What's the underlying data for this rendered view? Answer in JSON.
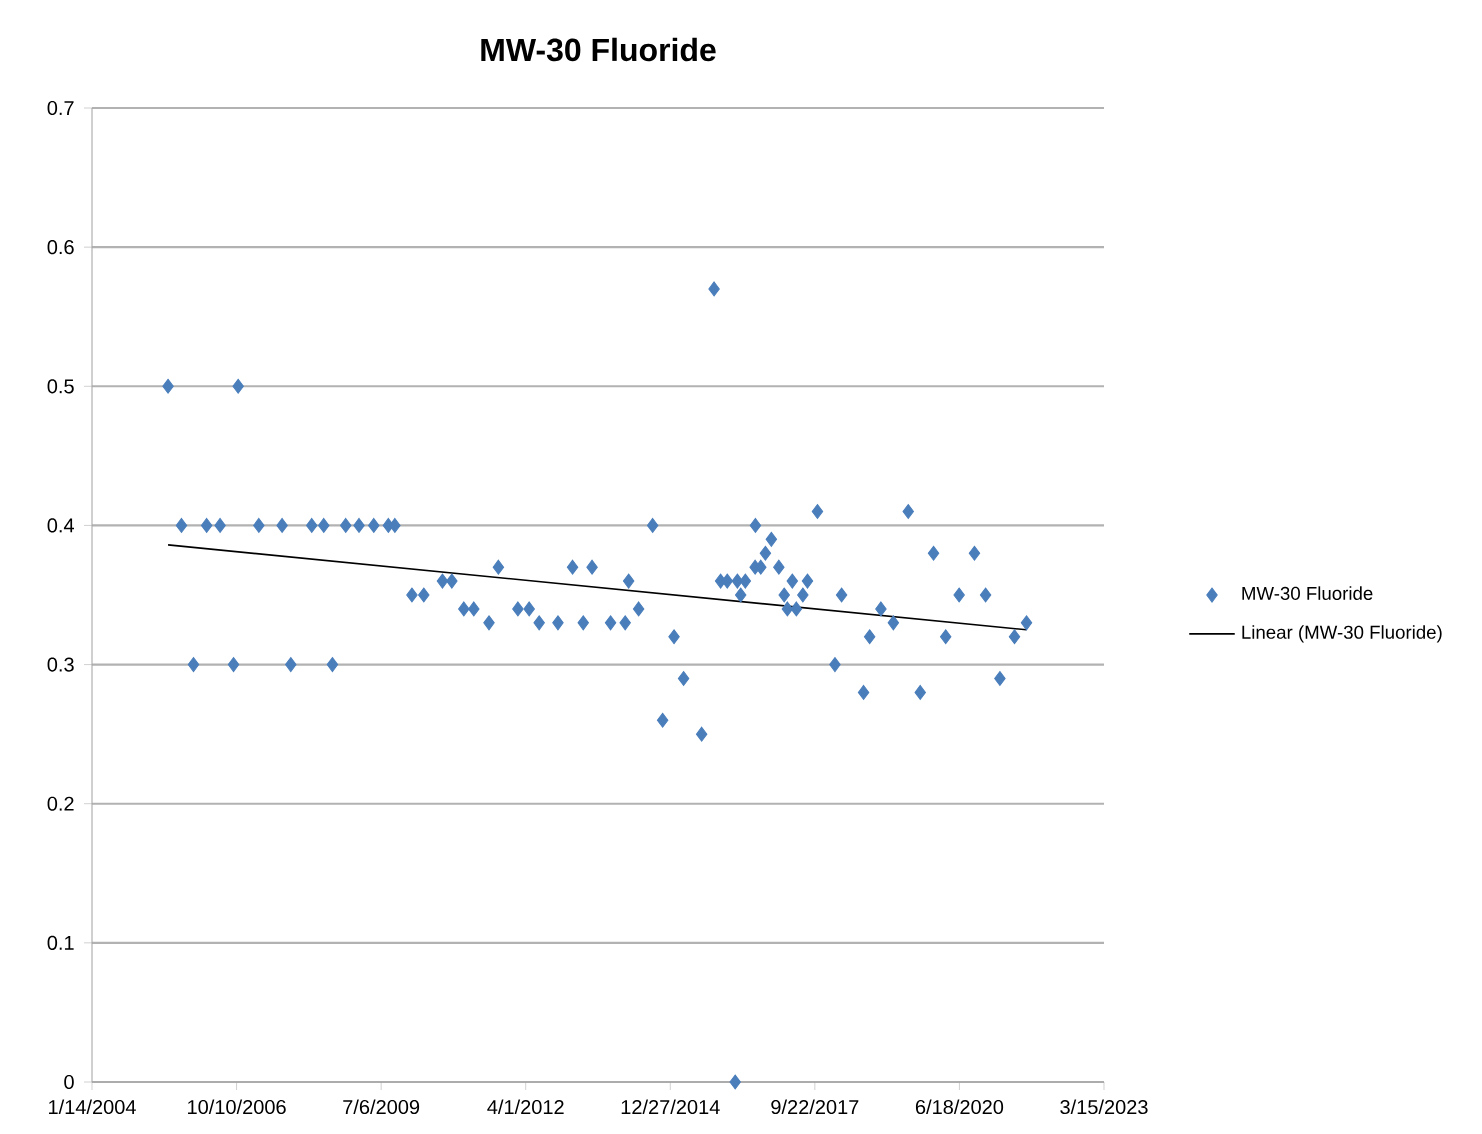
{
  "chart_data": {
    "type": "scatter",
    "title": "MW-30 Fluoride",
    "legend": "right",
    "grid": "y",
    "xlim": [
      "2004-01-14",
      "2023-03-15"
    ],
    "xticks": [
      {
        "value": "2004-01-14",
        "label": "1/14/2004"
      },
      {
        "value": "2006-10-10",
        "label": "10/10/2006"
      },
      {
        "value": "2009-07-06",
        "label": "7/6/2009"
      },
      {
        "value": "2012-04-01",
        "label": "4/1/2012"
      },
      {
        "value": "2014-12-27",
        "label": "12/27/2014"
      },
      {
        "value": "2017-09-22",
        "label": "9/22/2017"
      },
      {
        "value": "2020-06-18",
        "label": "6/18/2020"
      },
      {
        "value": "2023-03-15",
        "label": "3/15/2023"
      }
    ],
    "ylim": [
      0,
      0.7
    ],
    "yticks": [
      0,
      0.1,
      0.2,
      0.3,
      0.4,
      0.5,
      0.6,
      0.7
    ],
    "series": [
      {
        "name": "MW-30 Fluoride",
        "marker": "diamond",
        "color": "#4a7ebb",
        "x": [
          "2005-06-23",
          "2005-09-24",
          "2005-12-16",
          "2006-03-17",
          "2006-06-18",
          "2006-09-19",
          "2006-10-21",
          "2007-03-13",
          "2007-08-21",
          "2007-10-20",
          "2008-03-13",
          "2008-06-04",
          "2008-08-03",
          "2008-11-03",
          "2009-02-03",
          "2009-05-16",
          "2009-08-25",
          "2009-10-09",
          "2010-02-04",
          "2010-04-27",
          "2010-09-03",
          "2010-11-07",
          "2011-01-29",
          "2011-04-08",
          "2011-07-22",
          "2011-09-25",
          "2012-02-07",
          "2012-04-25",
          "2012-07-03",
          "2012-11-10",
          "2013-02-19",
          "2013-05-04",
          "2013-07-04",
          "2013-11-09",
          "2014-02-18",
          "2014-03-14",
          "2014-05-22",
          "2014-08-27",
          "2014-11-04",
          "2015-01-22",
          "2015-03-29",
          "2015-08-01",
          "2015-10-26",
          "2015-12-10",
          "2016-01-25",
          "2016-03-20",
          "2016-04-04",
          "2016-04-27",
          "2016-05-29",
          "2016-08-05",
          "2016-08-07",
          "2016-09-13",
          "2016-10-15",
          "2016-11-25",
          "2017-01-16",
          "2017-02-22",
          "2017-03-16",
          "2017-04-19",
          "2017-05-17",
          "2017-07-01",
          "2017-08-02",
          "2017-10-10",
          "2018-02-08",
          "2018-03-26",
          "2018-08-25",
          "2018-10-06",
          "2018-12-23",
          "2019-03-19",
          "2019-06-30",
          "2019-09-21",
          "2019-12-22",
          "2020-03-15",
          "2020-06-16",
          "2020-09-30",
          "2020-12-16",
          "2021-03-25",
          "2021-07-04",
          "2021-09-25"
        ],
        "values": [
          0.5,
          0.4,
          0.3,
          0.4,
          0.4,
          0.3,
          0.5,
          0.4,
          0.4,
          0.3,
          0.4,
          0.4,
          0.3,
          0.4,
          0.4,
          0.4,
          0.4,
          0.4,
          0.35,
          0.35,
          0.36,
          0.36,
          0.34,
          0.34,
          0.33,
          0.37,
          0.34,
          0.34,
          0.33,
          0.33,
          0.37,
          0.33,
          0.37,
          0.33,
          0.33,
          0.36,
          0.34,
          0.4,
          0.26,
          0.32,
          0.29,
          0.25,
          0.57,
          0.36,
          0.36,
          0,
          0.36,
          0.35,
          0.36,
          0.37,
          0.4,
          0.37,
          0.38,
          0.39,
          0.37,
          0.35,
          0.34,
          0.36,
          0.34,
          0.35,
          0.36,
          0.41,
          0.3,
          0.35,
          0.28,
          0.32,
          0.34,
          0.33,
          0.41,
          0.28,
          0.38,
          0.32,
          0.35,
          0.38,
          0.35,
          0.29,
          0.32,
          0.33
        ]
      },
      {
        "name": "Linear (MW-30 Fluoride)",
        "type": "line",
        "marker": "none",
        "color": "#000000",
        "x": [
          "2005-06-23",
          "2021-09-25"
        ],
        "values": [
          0.386,
          0.325
        ]
      }
    ]
  }
}
